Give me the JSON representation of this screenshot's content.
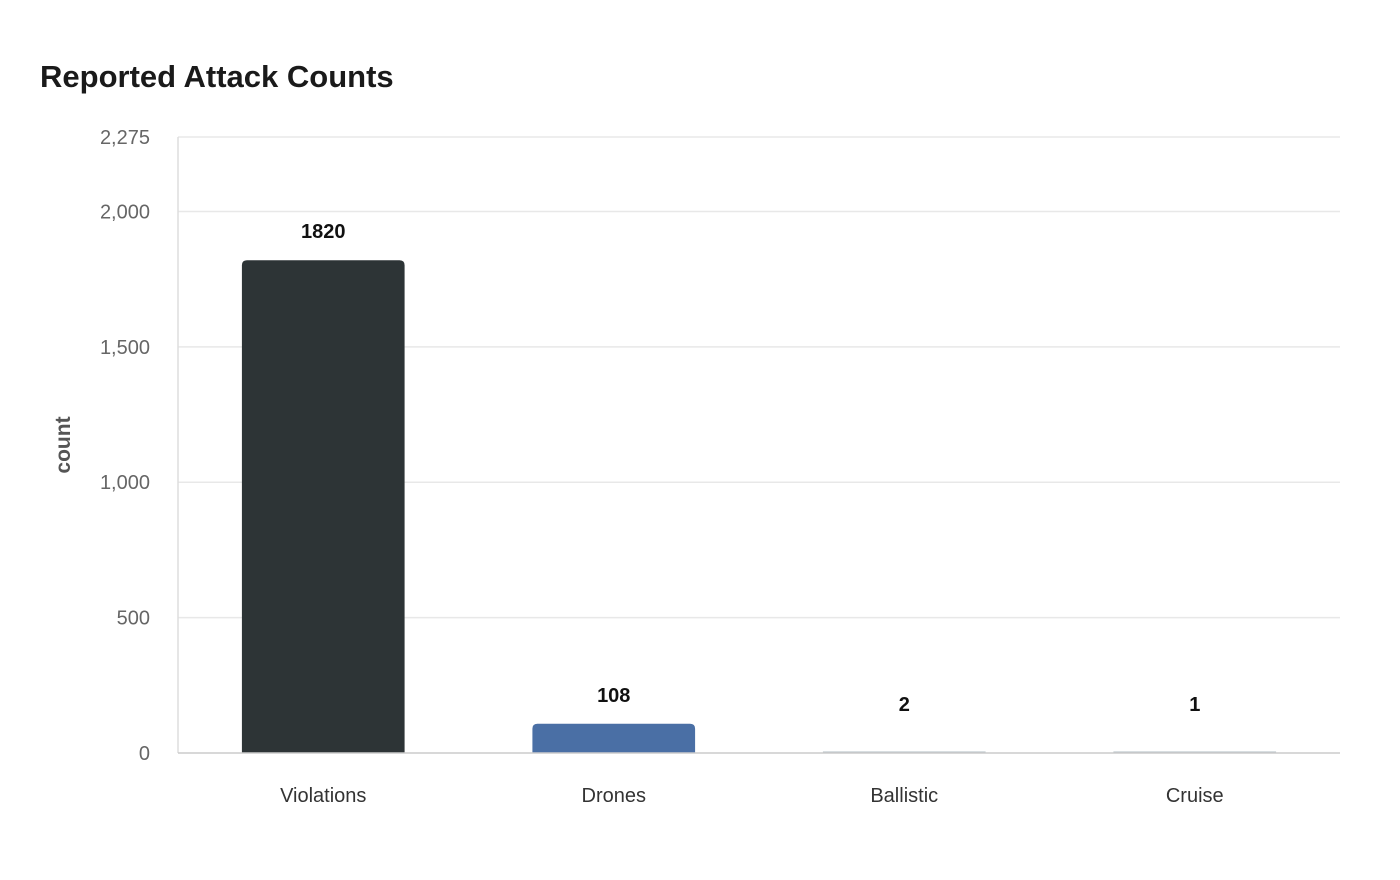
{
  "chart_data": {
    "type": "bar",
    "title": "Reported Attack Counts",
    "xlabel": "",
    "ylabel": "count",
    "categories": [
      "Violations",
      "Drones",
      "Ballistic",
      "Cruise"
    ],
    "values": [
      1820,
      108,
      2,
      1
    ],
    "data_labels": [
      "1820",
      "108",
      "2",
      "1"
    ],
    "bar_colors": [
      "#2d3436",
      "#4a6fa5",
      "#b2bec3",
      "#b2bec3"
    ],
    "ylim": [
      0,
      2275
    ],
    "yticks": [
      0,
      500,
      1000,
      1500,
      2000,
      2275
    ],
    "ytick_labels": [
      "0",
      "500",
      "1,000",
      "1,500",
      "2,000",
      "2,275"
    ],
    "grid": true,
    "legend": "none"
  }
}
